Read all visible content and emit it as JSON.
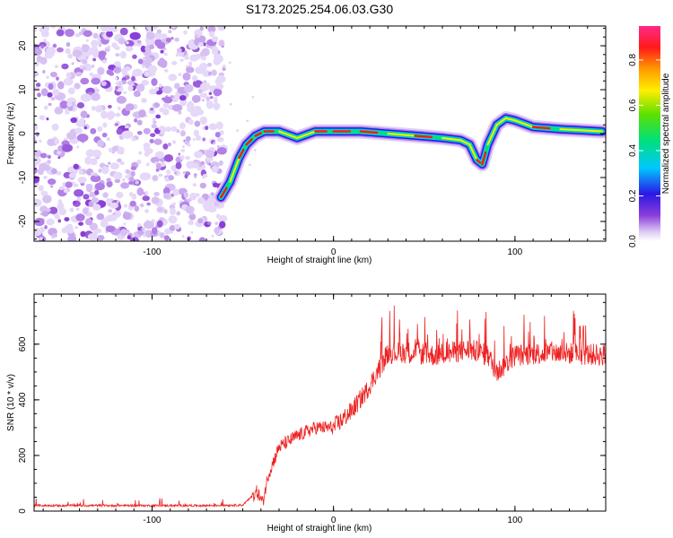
{
  "figure": {
    "title": "S173.2025.254.06.03.G30"
  },
  "chart_data": [
    {
      "type": "heatmap",
      "name": "spectrogram",
      "title": "S173.2025.254.06.03.G30",
      "xlabel": "Height of straight line (km)",
      "ylabel": "Frequency (Hz)",
      "xlim": [
        -165,
        150
      ],
      "ylim": [
        -24.5,
        24.5
      ],
      "xticks": [
        -100,
        0,
        100
      ],
      "yticks": [
        -20,
        -10,
        0,
        10,
        20
      ],
      "noise_region_x": [
        -165,
        -60
      ],
      "ridge": {
        "description_x": [
          -62,
          -57,
          -52,
          -48,
          -43,
          -38,
          -30,
          -20,
          -10,
          0,
          15,
          30,
          45,
          60,
          70,
          75,
          79,
          82,
          85,
          90,
          95,
          100,
          110,
          125,
          148
        ],
        "frequency": [
          -14.5,
          -11,
          -5.5,
          -2.5,
          -0.5,
          0.5,
          0.5,
          -1,
          0.5,
          0.5,
          0.5,
          0,
          -0.5,
          -1,
          -1.5,
          -2.5,
          -6,
          -7,
          -2.5,
          2,
          3.5,
          3,
          1.5,
          1,
          0.5
        ]
      },
      "colorbar": {
        "label": "Normalized spectral amplitude",
        "range": [
          0.0,
          0.95
        ],
        "ticks": [
          0.0,
          0.2,
          0.4,
          0.6,
          0.8
        ],
        "tick_labels": [
          "0.0",
          "0.2",
          "0.4",
          "0.6",
          "0.8"
        ]
      }
    },
    {
      "type": "line",
      "name": "snr",
      "xlabel": "Height of straight line (km)",
      "ylabel": "SNR (10 * v/v)",
      "xlim": [
        -165,
        150
      ],
      "ylim": [
        0,
        780
      ],
      "xticks": [
        -100,
        0,
        100
      ],
      "yticks": [
        0,
        200,
        400,
        600
      ],
      "series": [
        {
          "name": "SNR",
          "color": "#ee2222",
          "x": [
            -165,
            -130,
            -100,
            -70,
            -50,
            -42,
            -39,
            -36,
            -30,
            -20,
            -10,
            0,
            10,
            18,
            25,
            30,
            45,
            55,
            65,
            75,
            85,
            90,
            100,
            120,
            150
          ],
          "y": [
            20,
            20,
            20,
            20,
            22,
            70,
            30,
            130,
            230,
            270,
            300,
            300,
            360,
            430,
            510,
            570,
            570,
            560,
            570,
            580,
            560,
            500,
            560,
            570,
            560
          ]
        }
      ]
    }
  ],
  "colors": {
    "snr_line": "#ee2222",
    "noise_purple": "#8a3fd8",
    "noise_light": "#d8c2f3"
  }
}
